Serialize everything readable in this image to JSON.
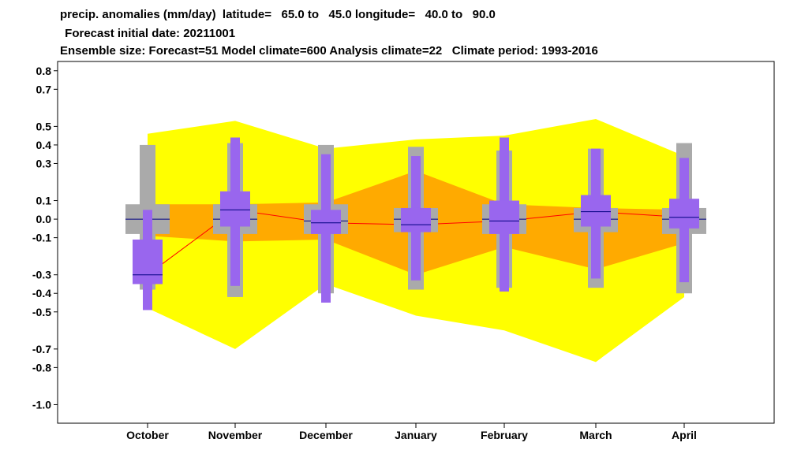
{
  "title_lines": [
    "precip. anomalies (mm/day)  latitude=   65.0 to   45.0 longitude=   40.0 to   90.0",
    " Forecast initial date: 20211001",
    "Ensemble size: Forecast=51 Model climate=600 Analysis climate=22   Climate period: 1993-2016"
  ],
  "chart_data": {
    "type": "box",
    "categories": [
      "October",
      "November",
      "December",
      "January",
      "February",
      "March",
      "April"
    ],
    "ylim": [
      -1.1,
      0.85
    ],
    "yticks": [
      {
        "v": 0.8,
        "label": "0.8"
      },
      {
        "v": 0.7,
        "label": "0.7"
      },
      {
        "v": 0.5,
        "label": "0.5"
      },
      {
        "v": 0.4,
        "label": "0.4"
      },
      {
        "v": 0.3,
        "label": "0.3"
      },
      {
        "v": 0.1,
        "label": "0.1"
      },
      {
        "v": 0.0,
        "label": "0.0"
      },
      {
        "v": -0.1,
        "label": "-0.1"
      },
      {
        "v": -0.3,
        "label": "-0.3"
      },
      {
        "v": -0.4,
        "label": "-0.4"
      },
      {
        "v": -0.5,
        "label": "-0.5"
      },
      {
        "v": -0.7,
        "label": "-0.7"
      },
      {
        "v": -0.8,
        "label": "-0.8"
      },
      {
        "v": -1.0,
        "label": "-1.0"
      }
    ],
    "climate_outer_band": {
      "upper": [
        0.46,
        0.53,
        0.38,
        0.43,
        0.45,
        0.54,
        0.34
      ],
      "lower": [
        -0.48,
        -0.7,
        -0.35,
        -0.52,
        -0.6,
        -0.77,
        -0.42
      ]
    },
    "climate_inner_band": {
      "upper": [
        0.08,
        0.08,
        0.09,
        0.26,
        0.08,
        0.06,
        0.05
      ],
      "lower": [
        -0.09,
        -0.12,
        -0.11,
        -0.3,
        -0.15,
        -0.27,
        -0.13
      ]
    },
    "model_climate_box": [
      {
        "whisker_low": -0.38,
        "whisker_high": 0.4,
        "box_low": -0.08,
        "box_high": 0.08,
        "median": 0.0
      },
      {
        "whisker_low": -0.42,
        "whisker_high": 0.41,
        "box_low": -0.08,
        "box_high": 0.08,
        "median": 0.0
      },
      {
        "whisker_low": -0.4,
        "whisker_high": 0.4,
        "box_low": -0.08,
        "box_high": 0.08,
        "median": -0.01
      },
      {
        "whisker_low": -0.38,
        "whisker_high": 0.39,
        "box_low": -0.07,
        "box_high": 0.06,
        "median": 0.0
      },
      {
        "whisker_low": -0.37,
        "whisker_high": 0.37,
        "box_low": -0.08,
        "box_high": 0.08,
        "median": 0.0
      },
      {
        "whisker_low": -0.37,
        "whisker_high": 0.38,
        "box_low": -0.07,
        "box_high": 0.06,
        "median": 0.0
      },
      {
        "whisker_low": -0.4,
        "whisker_high": 0.41,
        "box_low": -0.08,
        "box_high": 0.06,
        "median": 0.0
      }
    ],
    "forecast_box": [
      {
        "whisker_low": -0.49,
        "whisker_high": 0.05,
        "box_low": -0.35,
        "box_high": -0.11,
        "median": -0.3
      },
      {
        "whisker_low": -0.36,
        "whisker_high": 0.44,
        "box_low": -0.04,
        "box_high": 0.15,
        "median": 0.05
      },
      {
        "whisker_low": -0.45,
        "whisker_high": 0.35,
        "box_low": -0.08,
        "box_high": 0.05,
        "median": -0.02
      },
      {
        "whisker_low": -0.33,
        "whisker_high": 0.34,
        "box_low": -0.07,
        "box_high": 0.06,
        "median": -0.03
      },
      {
        "whisker_low": -0.39,
        "whisker_high": 0.44,
        "box_low": -0.08,
        "box_high": 0.1,
        "median": -0.01
      },
      {
        "whisker_low": -0.32,
        "whisker_high": 0.38,
        "box_low": -0.04,
        "box_high": 0.13,
        "median": 0.04
      },
      {
        "whisker_low": -0.34,
        "whisker_high": 0.33,
        "box_low": -0.05,
        "box_high": 0.11,
        "median": 0.01
      }
    ],
    "colors": {
      "outer_band": "#ffff00",
      "inner_band": "#ffaa00",
      "climate_box": "#aaaaaa",
      "forecast_box": "#9966ee",
      "median_line": "#000080",
      "median_connector": "#ff0000"
    }
  }
}
